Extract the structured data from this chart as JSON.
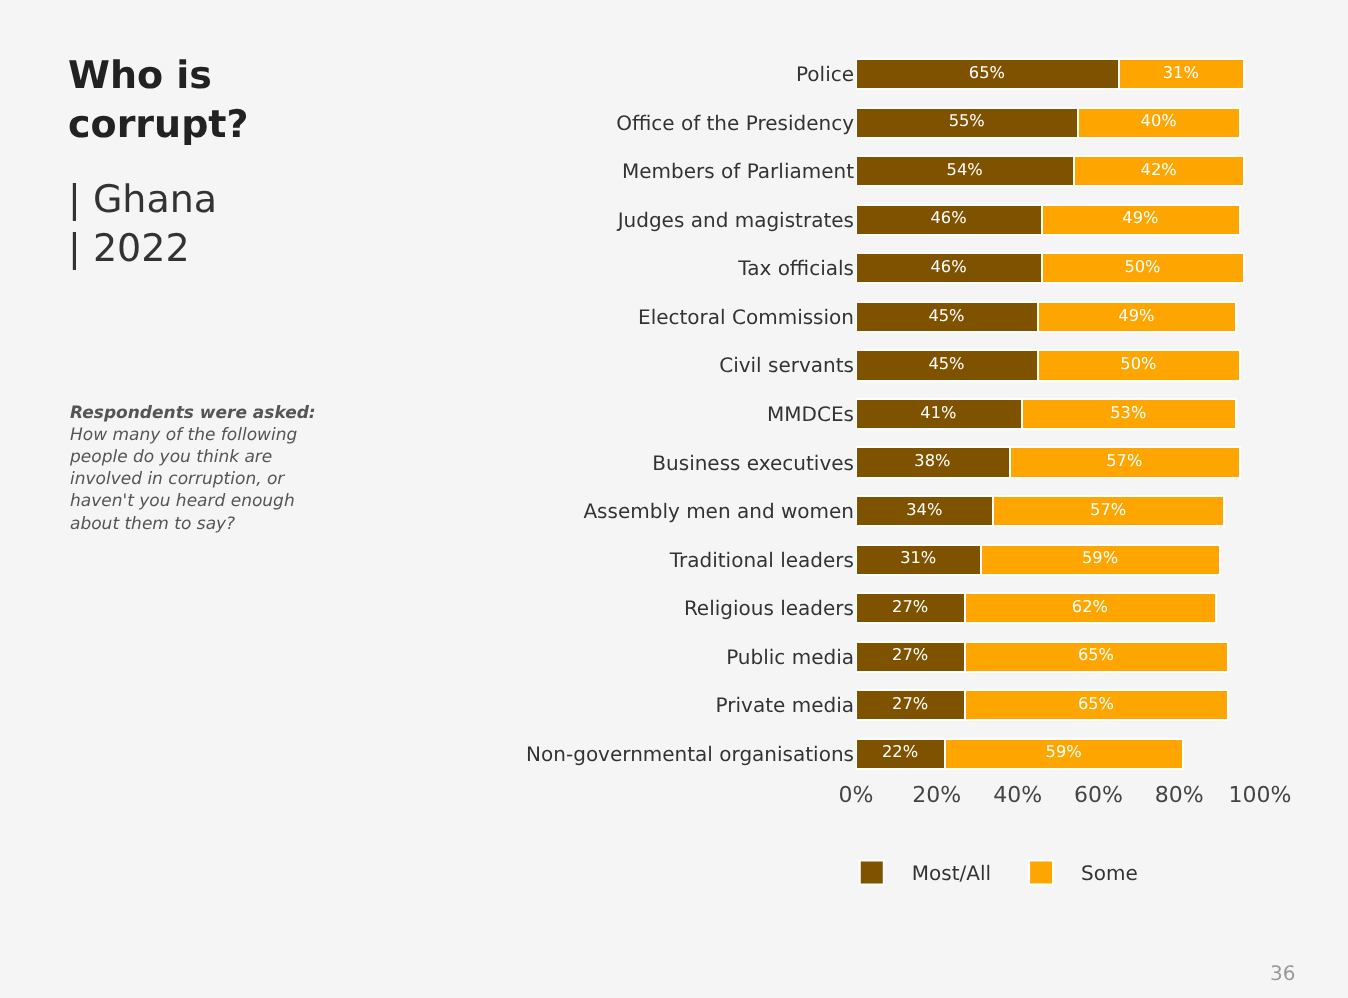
{
  "chart_data": {
    "type": "bar",
    "orientation": "horizontal",
    "stacked": true,
    "title": "Who is corrupt?",
    "subtitle": "| Ghana\n| 2022",
    "categories": [
      "Police",
      "Office of the Presidency",
      "Members of Parliament",
      "Judges and magistrates",
      "Tax officials",
      "Electoral Commission",
      "Civil servants",
      "MMDCEs",
      "Business executives",
      "Assembly men and women",
      "Traditional leaders",
      "Religious leaders",
      "Public media",
      "Private media",
      "Non-governmental organisations"
    ],
    "series": [
      {
        "name": "Most/All",
        "color": "#7f5200",
        "values": [
          65,
          55,
          54,
          46,
          46,
          45,
          45,
          41,
          38,
          34,
          31,
          27,
          27,
          27,
          22
        ],
        "value_labels": [
          "65%",
          "55%",
          "54%",
          "46%",
          "46%",
          "45%",
          "45%",
          "41%",
          "38%",
          "34%",
          "31%",
          "27%",
          "27%",
          "27%",
          "22%"
        ]
      },
      {
        "name": "Some",
        "color": "#ffa500",
        "values": [
          31,
          40,
          42,
          49,
          50,
          49,
          50,
          53,
          57,
          57,
          59,
          62,
          65,
          65,
          59
        ],
        "value_labels": [
          "31%",
          "40%",
          "42%",
          "49%",
          "50%",
          "49%",
          "50%",
          "53%",
          "57%",
          "57%",
          "59%",
          "62%",
          "65%",
          "65%",
          "59%"
        ]
      }
    ],
    "xlim": [
      0,
      100
    ],
    "xticks": [
      {
        "value": 0,
        "label": "0%"
      },
      {
        "value": 20,
        "label": "20%"
      },
      {
        "value": 40,
        "label": "40%"
      },
      {
        "value": 60,
        "label": "60%"
      },
      {
        "value": 80,
        "label": "80%"
      },
      {
        "value": 100,
        "label": "100%"
      }
    ],
    "grid": false,
    "legend": "bottom",
    "annotations": [
      "$^{}$Respondents were asked: How many of the following people do you think are involved in corruption, or haven't you heard enough about them to say?",
      "36"
    ]
  }
}
